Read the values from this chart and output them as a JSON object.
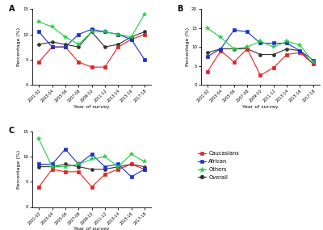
{
  "x_labels": [
    "2001-02",
    "2003-04",
    "2005-06",
    "2007-08",
    "2009-10",
    "2011-12",
    "2013-14",
    "2015-16",
    "2017-18"
  ],
  "panel_A": {
    "ylim": [
      0,
      15
    ],
    "yticks": [
      0,
      5,
      10,
      15
    ],
    "caucasian": [
      4.5,
      7.5,
      7.5,
      4.5,
      3.5,
      3.5,
      7.5,
      9.0,
      10.0
    ],
    "african": [
      10.5,
      7.5,
      7.5,
      10.0,
      11.0,
      10.5,
      10.0,
      9.0,
      5.0
    ],
    "others": [
      12.5,
      11.5,
      9.5,
      8.0,
      10.5,
      10.5,
      10.0,
      9.5,
      14.0
    ],
    "overall": [
      8.0,
      8.5,
      8.0,
      7.5,
      10.5,
      7.5,
      8.0,
      9.5,
      10.5
    ]
  },
  "panel_B": {
    "ylim": [
      0,
      20
    ],
    "yticks": [
      0,
      5,
      10,
      15,
      20
    ],
    "caucasian": [
      3.5,
      9.0,
      6.0,
      9.5,
      2.5,
      4.5,
      8.0,
      8.5,
      5.5
    ],
    "african": [
      7.5,
      9.5,
      14.5,
      14.0,
      11.0,
      11.0,
      11.0,
      9.0,
      6.5
    ],
    "others": [
      15.0,
      12.5,
      9.5,
      10.0,
      11.5,
      10.0,
      11.5,
      10.5,
      6.0
    ],
    "overall": [
      8.5,
      9.5,
      9.5,
      9.5,
      8.0,
      8.0,
      9.5,
      9.0,
      5.5
    ]
  },
  "panel_C": {
    "ylim": [
      0,
      15
    ],
    "yticks": [
      0,
      5,
      10,
      15
    ],
    "caucasian": [
      4.0,
      7.5,
      7.0,
      7.0,
      4.0,
      6.5,
      7.5,
      8.5,
      7.5
    ],
    "african": [
      8.5,
      8.5,
      11.5,
      8.5,
      10.5,
      8.0,
      8.5,
      6.0,
      7.5
    ],
    "others": [
      13.5,
      8.0,
      8.0,
      8.5,
      9.5,
      10.0,
      8.0,
      10.5,
      9.0
    ],
    "overall": [
      8.0,
      8.0,
      8.5,
      8.0,
      7.5,
      7.5,
      8.0,
      8.5,
      8.0
    ]
  },
  "colors": {
    "caucasian": "#e52222",
    "african": "#1a33cc",
    "others": "#22cc44",
    "overall": "#333333"
  },
  "ylabel": "Percentage (%)",
  "xlabel": "Year of survey",
  "bg_color": "#ffffff"
}
